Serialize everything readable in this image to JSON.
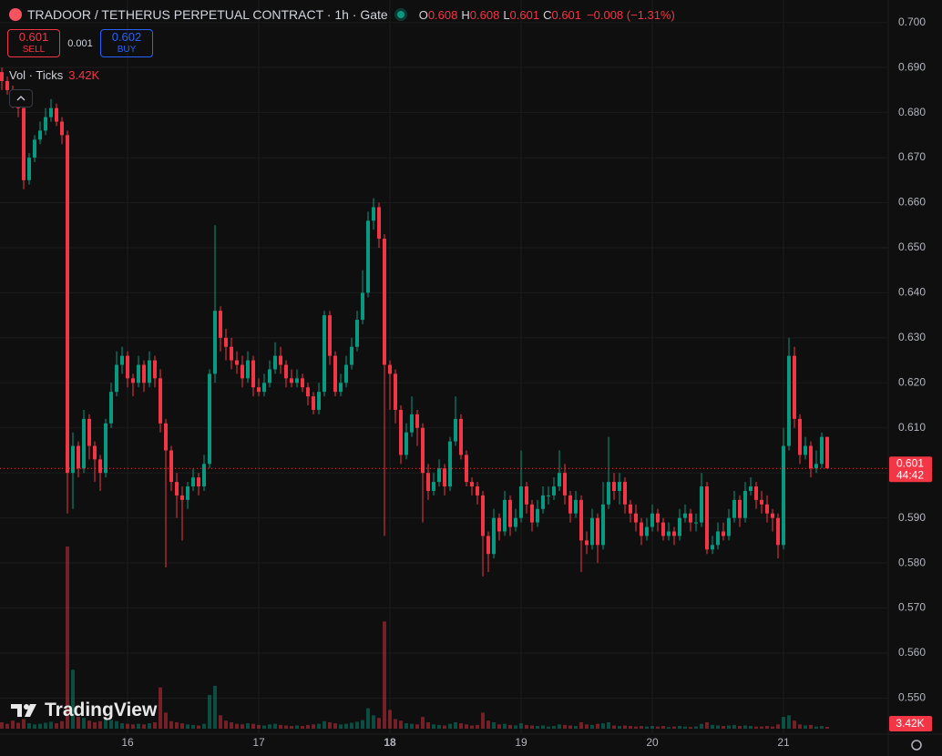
{
  "chart_data": {
    "type": "candlestick",
    "title": "TRADOOR / TETHERUS PERPETUAL CONTRACT · 1h · Gate",
    "ohlc_letters": [
      "O",
      "H",
      "L",
      "C"
    ],
    "change": "−0.008 (−1.31%)",
    "sell_label": "SELL",
    "buy_label": "BUY",
    "buy_price": 0.602,
    "spread": 0.001,
    "volume_title": "Vol · Ticks",
    "volume_label": "3.42K",
    "countdown": "44:42",
    "logo": "TradingView",
    "up_color": "#089981",
    "down_color": "#f23645",
    "grid": true,
    "categories": [
      null,
      null,
      null,
      null,
      null,
      null,
      null,
      null,
      null,
      null,
      null,
      null,
      null,
      null,
      null,
      null,
      null,
      null,
      null,
      null,
      null,
      null,
      null,
      "16",
      null,
      null,
      null,
      null,
      null,
      null,
      null,
      null,
      null,
      null,
      null,
      null,
      null,
      null,
      null,
      null,
      null,
      null,
      null,
      null,
      null,
      null,
      null,
      "17",
      null,
      null,
      null,
      null,
      null,
      null,
      null,
      null,
      null,
      null,
      null,
      null,
      null,
      null,
      null,
      null,
      null,
      null,
      null,
      null,
      null,
      null,
      null,
      "18",
      null,
      null,
      null,
      null,
      null,
      null,
      null,
      null,
      null,
      null,
      null,
      null,
      null,
      null,
      null,
      null,
      null,
      null,
      null,
      null,
      null,
      null,
      null,
      "19",
      null,
      null,
      null,
      null,
      null,
      null,
      null,
      null,
      null,
      null,
      null,
      null,
      null,
      null,
      null,
      null,
      null,
      null,
      null,
      null,
      null,
      null,
      null,
      "20",
      null,
      null,
      null,
      null,
      null,
      null,
      null,
      null,
      null,
      null,
      null,
      null,
      null,
      null,
      null,
      null,
      null,
      null,
      null,
      null,
      null,
      null,
      null,
      "21",
      null,
      null,
      null,
      null,
      null,
      null,
      null,
      null
    ],
    "open": [
      0.689,
      0.687,
      0.685,
      0.683,
      0.681,
      0.665,
      0.67,
      0.674,
      0.676,
      0.679,
      0.681,
      0.678,
      0.675,
      0.6,
      0.606,
      0.601,
      0.612,
      0.606,
      0.603,
      0.6,
      0.611,
      0.618,
      0.624,
      0.626,
      0.621,
      0.62,
      0.624,
      0.62,
      0.625,
      0.621,
      0.611,
      0.605,
      0.598,
      0.595,
      0.594,
      0.597,
      0.599,
      0.597,
      0.602,
      0.622,
      0.636,
      0.63,
      0.628,
      0.625,
      0.624,
      0.621,
      0.625,
      0.619,
      0.618,
      0.62,
      0.623,
      0.626,
      0.624,
      0.621,
      0.62,
      0.621,
      0.619,
      0.617,
      0.614,
      0.618,
      0.635,
      0.626,
      0.618,
      0.62,
      0.624,
      0.628,
      0.634,
      0.64,
      0.656,
      0.659,
      0.652,
      0.624,
      0.622,
      0.614,
      0.604,
      0.609,
      0.613,
      0.61,
      0.6,
      0.596,
      0.598,
      0.601,
      0.597,
      0.607,
      0.612,
      0.604,
      0.598,
      0.597,
      0.595,
      0.586,
      0.582,
      0.59,
      0.587,
      0.594,
      0.588,
      0.59,
      0.597,
      0.593,
      0.589,
      0.592,
      0.595,
      0.595,
      0.597,
      0.6,
      0.595,
      0.591,
      0.594,
      0.585,
      0.584,
      0.59,
      0.584,
      0.593,
      0.598,
      0.596,
      0.598,
      0.593,
      0.591,
      0.589,
      0.586,
      0.588,
      0.591,
      0.589,
      0.586,
      0.587,
      0.586,
      0.59,
      0.591,
      0.589,
      0.589,
      0.597,
      0.583,
      0.584,
      0.587,
      0.586,
      0.59,
      0.594,
      0.59,
      0.596,
      0.597,
      0.594,
      0.593,
      0.591,
      0.59,
      0.584,
      0.606,
      0.626,
      0.612,
      0.604,
      0.606,
      0.601,
      0.602,
      0.608
    ],
    "high": [
      0.69,
      0.688,
      0.686,
      0.684,
      0.682,
      0.671,
      0.675,
      0.678,
      0.681,
      0.683,
      0.682,
      0.679,
      0.676,
      0.609,
      0.607,
      0.614,
      0.613,
      0.607,
      0.604,
      0.612,
      0.62,
      0.627,
      0.628,
      0.627,
      0.622,
      0.626,
      0.625,
      0.627,
      0.626,
      0.623,
      0.612,
      0.606,
      0.6,
      0.597,
      0.598,
      0.601,
      0.6,
      0.604,
      0.623,
      0.655,
      0.637,
      0.632,
      0.63,
      0.627,
      0.626,
      0.627,
      0.626,
      0.621,
      0.622,
      0.625,
      0.629,
      0.628,
      0.625,
      0.623,
      0.623,
      0.622,
      0.62,
      0.618,
      0.62,
      0.636,
      0.636,
      0.627,
      0.622,
      0.626,
      0.63,
      0.636,
      0.645,
      0.658,
      0.661,
      0.66,
      0.653,
      0.625,
      0.623,
      0.615,
      0.611,
      0.617,
      0.614,
      0.611,
      0.602,
      0.6,
      0.603,
      0.602,
      0.608,
      0.617,
      0.613,
      0.605,
      0.599,
      0.598,
      0.596,
      0.587,
      0.592,
      0.591,
      0.596,
      0.595,
      0.592,
      0.605,
      0.598,
      0.594,
      0.594,
      0.597,
      0.597,
      0.599,
      0.605,
      0.602,
      0.596,
      0.596,
      0.595,
      0.587,
      0.592,
      0.591,
      0.598,
      0.608,
      0.6,
      0.6,
      0.599,
      0.594,
      0.593,
      0.59,
      0.59,
      0.593,
      0.592,
      0.59,
      0.589,
      0.588,
      0.592,
      0.593,
      0.592,
      0.591,
      0.6,
      0.598,
      0.586,
      0.589,
      0.589,
      0.592,
      0.596,
      0.595,
      0.598,
      0.599,
      0.598,
      0.596,
      0.595,
      0.592,
      0.591,
      0.61,
      0.63,
      0.628,
      0.613,
      0.608,
      0.607,
      0.605,
      0.609,
      0.608
    ],
    "low": [
      0.685,
      0.684,
      0.681,
      0.679,
      0.663,
      0.664,
      0.669,
      0.673,
      0.675,
      0.678,
      0.677,
      0.673,
      0.591,
      0.592,
      0.599,
      0.6,
      0.603,
      0.598,
      0.596,
      0.599,
      0.61,
      0.617,
      0.622,
      0.619,
      0.617,
      0.619,
      0.618,
      0.619,
      0.619,
      0.609,
      0.579,
      0.596,
      0.59,
      0.585,
      0.592,
      0.596,
      0.595,
      0.596,
      0.601,
      0.62,
      0.627,
      0.625,
      0.623,
      0.622,
      0.619,
      0.62,
      0.617,
      0.617,
      0.617,
      0.619,
      0.622,
      0.622,
      0.619,
      0.619,
      0.619,
      0.618,
      0.615,
      0.613,
      0.613,
      0.617,
      0.624,
      0.617,
      0.617,
      0.619,
      0.623,
      0.627,
      0.633,
      0.639,
      0.654,
      0.65,
      0.586,
      0.614,
      0.611,
      0.602,
      0.603,
      0.608,
      0.606,
      0.589,
      0.594,
      0.595,
      0.597,
      0.595,
      0.596,
      0.606,
      0.603,
      0.597,
      0.595,
      0.593,
      0.577,
      0.578,
      0.581,
      0.585,
      0.586,
      0.586,
      0.587,
      0.589,
      0.591,
      0.587,
      0.588,
      0.591,
      0.593,
      0.594,
      0.596,
      0.593,
      0.589,
      0.59,
      0.578,
      0.582,
      0.583,
      0.58,
      0.583,
      0.592,
      0.594,
      0.593,
      0.591,
      0.589,
      0.587,
      0.584,
      0.585,
      0.587,
      0.587,
      0.585,
      0.585,
      0.584,
      0.585,
      0.589,
      0.587,
      0.587,
      0.588,
      0.582,
      0.582,
      0.583,
      0.585,
      0.585,
      0.589,
      0.588,
      0.589,
      0.595,
      0.592,
      0.591,
      0.589,
      0.587,
      0.581,
      0.583,
      0.605,
      0.61,
      0.602,
      0.603,
      0.599,
      0.6,
      0.601,
      0.601
    ],
    "close": [
      0.687,
      0.685,
      0.683,
      0.681,
      0.665,
      0.67,
      0.674,
      0.676,
      0.679,
      0.681,
      0.678,
      0.675,
      0.6,
      0.606,
      0.601,
      0.612,
      0.606,
      0.603,
      0.6,
      0.611,
      0.618,
      0.624,
      0.626,
      0.621,
      0.62,
      0.624,
      0.62,
      0.625,
      0.621,
      0.611,
      0.605,
      0.598,
      0.595,
      0.594,
      0.597,
      0.599,
      0.597,
      0.602,
      0.622,
      0.636,
      0.63,
      0.628,
      0.625,
      0.624,
      0.621,
      0.625,
      0.619,
      0.618,
      0.62,
      0.623,
      0.626,
      0.624,
      0.621,
      0.62,
      0.621,
      0.619,
      0.617,
      0.614,
      0.618,
      0.635,
      0.626,
      0.618,
      0.62,
      0.624,
      0.628,
      0.634,
      0.64,
      0.656,
      0.659,
      0.652,
      0.624,
      0.622,
      0.614,
      0.604,
      0.609,
      0.613,
      0.61,
      0.6,
      0.596,
      0.598,
      0.601,
      0.597,
      0.607,
      0.612,
      0.604,
      0.598,
      0.597,
      0.595,
      0.586,
      0.582,
      0.59,
      0.587,
      0.594,
      0.588,
      0.59,
      0.597,
      0.593,
      0.589,
      0.592,
      0.595,
      0.595,
      0.597,
      0.6,
      0.595,
      0.591,
      0.594,
      0.585,
      0.584,
      0.59,
      0.584,
      0.593,
      0.598,
      0.596,
      0.598,
      0.593,
      0.591,
      0.589,
      0.586,
      0.588,
      0.591,
      0.589,
      0.586,
      0.587,
      0.586,
      0.59,
      0.591,
      0.589,
      0.589,
      0.597,
      0.583,
      0.584,
      0.587,
      0.586,
      0.59,
      0.594,
      0.59,
      0.596,
      0.597,
      0.594,
      0.593,
      0.591,
      0.59,
      0.584,
      0.606,
      0.626,
      0.612,
      0.604,
      0.606,
      0.601,
      0.602,
      0.608,
      0.601
    ],
    "volume": [
      12000,
      9000,
      15000,
      11000,
      18000,
      10000,
      8000,
      9000,
      11000,
      13000,
      10000,
      14000,
      340000,
      110000,
      22000,
      20000,
      15000,
      12000,
      14000,
      17000,
      16000,
      14000,
      10000,
      9000,
      8000,
      9000,
      8000,
      10000,
      12000,
      77000,
      30000,
      14000,
      12000,
      10000,
      8000,
      7000,
      6000,
      9000,
      63000,
      80000,
      25000,
      15000,
      12000,
      9000,
      8000,
      10000,
      9000,
      7000,
      6000,
      8000,
      9000,
      7000,
      6000,
      5000,
      6000,
      5000,
      7000,
      8000,
      9000,
      14000,
      12000,
      10000,
      8000,
      9000,
      11000,
      13000,
      16000,
      38000,
      25000,
      20000,
      200000,
      35000,
      18000,
      15000,
      10000,
      9000,
      8000,
      22000,
      12000,
      8000,
      7000,
      6000,
      9000,
      12000,
      10000,
      8000,
      6000,
      7000,
      30000,
      15000,
      12000,
      8000,
      9000,
      7000,
      6000,
      10000,
      7000,
      6000,
      5000,
      6000,
      4000,
      5000,
      8000,
      7000,
      6000,
      5000,
      12000,
      8000,
      7000,
      9000,
      10000,
      12000,
      6000,
      5000,
      6000,
      5000,
      4000,
      5000,
      4000,
      5000,
      4000,
      5000,
      3000,
      4000,
      5000,
      4000,
      3000,
      4000,
      9000,
      12000,
      7000,
      6000,
      5000,
      6000,
      7000,
      5000,
      6000,
      5000,
      4000,
      4000,
      5000,
      4000,
      8000,
      22000,
      25000,
      15000,
      8000,
      6000,
      7000,
      4000,
      5000,
      3420
    ],
    "ylim": [
      0.542,
      0.705
    ],
    "yticks": [
      {
        "value": 0.7,
        "label": "0.700"
      },
      {
        "value": 0.69,
        "label": "0.690"
      },
      {
        "value": 0.68,
        "label": "0.680"
      },
      {
        "value": 0.67,
        "label": "0.670"
      },
      {
        "value": 0.66,
        "label": "0.660"
      },
      {
        "value": 0.65,
        "label": "0.650"
      },
      {
        "value": 0.64,
        "label": "0.640"
      },
      {
        "value": 0.63,
        "label": "0.630"
      },
      {
        "value": 0.62,
        "label": "0.620"
      },
      {
        "value": 0.61,
        "label": "0.610"
      },
      {
        "value": 0.6,
        "label": "0.600"
      },
      {
        "value": 0.59,
        "label": "0.590"
      },
      {
        "value": 0.58,
        "label": "0.580"
      },
      {
        "value": 0.57,
        "label": "0.570"
      },
      {
        "value": 0.56,
        "label": "0.560"
      },
      {
        "value": 0.55,
        "label": "0.550"
      }
    ]
  }
}
